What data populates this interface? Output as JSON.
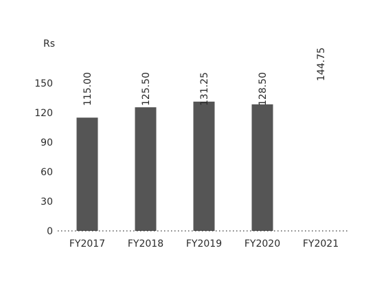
{
  "chart_data": {
    "type": "bar",
    "ylabel": "Rs",
    "categories": [
      "FY2017",
      "FY2018",
      "FY2019",
      "FY2020",
      "FY2021"
    ],
    "values": [
      115.0,
      125.5,
      131.25,
      128.5,
      144.75
    ],
    "value_labels": [
      "115.00",
      "125.50",
      "131.25",
      "128.50",
      "144.75"
    ],
    "bars_drawn": [
      true,
      true,
      true,
      true,
      false
    ],
    "yticks": [
      0,
      30,
      60,
      90,
      120,
      150
    ],
    "ylim": [
      0,
      150
    ],
    "grid": false,
    "baseline_style": "dotted",
    "bar_color": "#555555"
  }
}
